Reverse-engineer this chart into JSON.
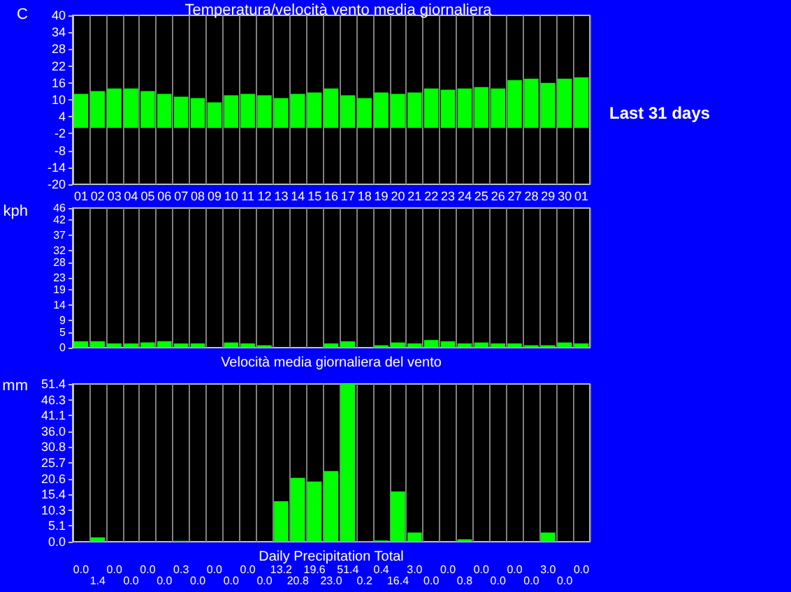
{
  "chart_data": [
    {
      "type": "bar",
      "title": "Temperatura/velocità vento media giornaliera",
      "ylabel": "C",
      "annotations": [
        "Last 31 days"
      ],
      "categories": [
        "01",
        "02",
        "03",
        "04",
        "05",
        "06",
        "07",
        "08",
        "09",
        "10",
        "11",
        "12",
        "13",
        "14",
        "15",
        "16",
        "17",
        "18",
        "19",
        "20",
        "21",
        "22",
        "23",
        "24",
        "25",
        "26",
        "27",
        "28",
        "29",
        "30",
        "01"
      ],
      "values": [
        12.1,
        13.1,
        14,
        14,
        13.1,
        12.1,
        11.1,
        10.6,
        9.1,
        11.6,
        12.1,
        11.6,
        10.6,
        12.1,
        12.6,
        14,
        11.6,
        10.6,
        12.6,
        12.1,
        12.6,
        14,
        13.6,
        14,
        14.5,
        14,
        17,
        17.5,
        16,
        17.5,
        18
      ],
      "color": "#00ff00",
      "ylim": [
        -20,
        40
      ],
      "yticks": [
        -20,
        -14,
        -8,
        -2,
        4,
        10,
        16,
        22,
        28,
        34,
        40
      ],
      "grid": "x"
    },
    {
      "type": "bar",
      "ylabel": "kph",
      "xlabel": "Velocità media giornaliera del vento",
      "categories": [
        "01",
        "02",
        "03",
        "04",
        "05",
        "06",
        "07",
        "08",
        "09",
        "10",
        "11",
        "12",
        "13",
        "14",
        "15",
        "16",
        "17",
        "18",
        "19",
        "20",
        "21",
        "22",
        "23",
        "24",
        "25",
        "26",
        "27",
        "28",
        "29",
        "30",
        "01"
      ],
      "values": [
        2.1,
        2.1,
        1.4,
        1.4,
        1.7,
        2.1,
        1.4,
        1.4,
        0,
        1.7,
        1.4,
        0.8,
        0,
        0,
        0,
        1.4,
        2.1,
        0,
        0.8,
        1.7,
        1.4,
        2.5,
        2.1,
        1.4,
        1.7,
        1.4,
        1.4,
        0.8,
        0.8,
        1.7,
        1.4
      ],
      "color": "#00ff00",
      "ylim": [
        0,
        46
      ],
      "yticks": [
        0,
        5,
        9,
        14,
        19,
        23,
        28,
        32,
        37,
        42,
        46
      ],
      "grid": "x",
      "tick_labels": "y"
    },
    {
      "type": "bar",
      "ylabel": "mm",
      "xlabel": "Daily Precipitation Total",
      "categories": [
        "01",
        "02",
        "03",
        "04",
        "05",
        "06",
        "07",
        "08",
        "09",
        "10",
        "11",
        "12",
        "13",
        "14",
        "15",
        "16",
        "17",
        "18",
        "19",
        "20",
        "21",
        "22",
        "23",
        "24",
        "25",
        "26",
        "27",
        "28",
        "29",
        "30",
        "01"
      ],
      "values": [
        0,
        1.4,
        0,
        0,
        0,
        0,
        0.3,
        0,
        0,
        0,
        0,
        0,
        13.2,
        20.8,
        19.6,
        23,
        51.4,
        0.2,
        0.4,
        16.4,
        3,
        0,
        0,
        0.8,
        0,
        0,
        0,
        0,
        3,
        0,
        0
      ],
      "value_labels": [
        "0.0",
        "1.4",
        "0.0",
        "0.0",
        "0.0",
        "0.0",
        "0.3",
        "0.0",
        "0.0",
        "0.0",
        "0.0",
        "0.0",
        "13.2",
        "20.8",
        "19.6",
        "23.0",
        "51.4",
        "0.2",
        "0.4",
        "16.4",
        "3.0",
        "0.0",
        "0.0",
        "0.8",
        "0.0",
        "0.0",
        "0.0",
        "0.0",
        "3.0",
        "0.0",
        "0.0"
      ],
      "color": "#00ff00",
      "ylim": [
        0,
        51.4
      ],
      "yticks": [
        {
          "value": 0,
          "label": "0.0"
        },
        {
          "value": 5.14,
          "label": "5.1"
        },
        {
          "value": 10.28,
          "label": "10.3"
        },
        {
          "value": 15.42,
          "label": "15.4"
        },
        {
          "value": 20.56,
          "label": "20.6"
        },
        {
          "value": 25.7,
          "label": "25.7"
        },
        {
          "value": 30.84,
          "label": "30.8"
        },
        {
          "value": 35.98,
          "label": "36.0"
        },
        {
          "value": 41.12,
          "label": "41.1"
        },
        {
          "value": 46.26,
          "label": "46.3"
        },
        {
          "value": 51.4,
          "label": "51.4"
        }
      ],
      "grid": "x",
      "tick_labels": "y"
    }
  ]
}
